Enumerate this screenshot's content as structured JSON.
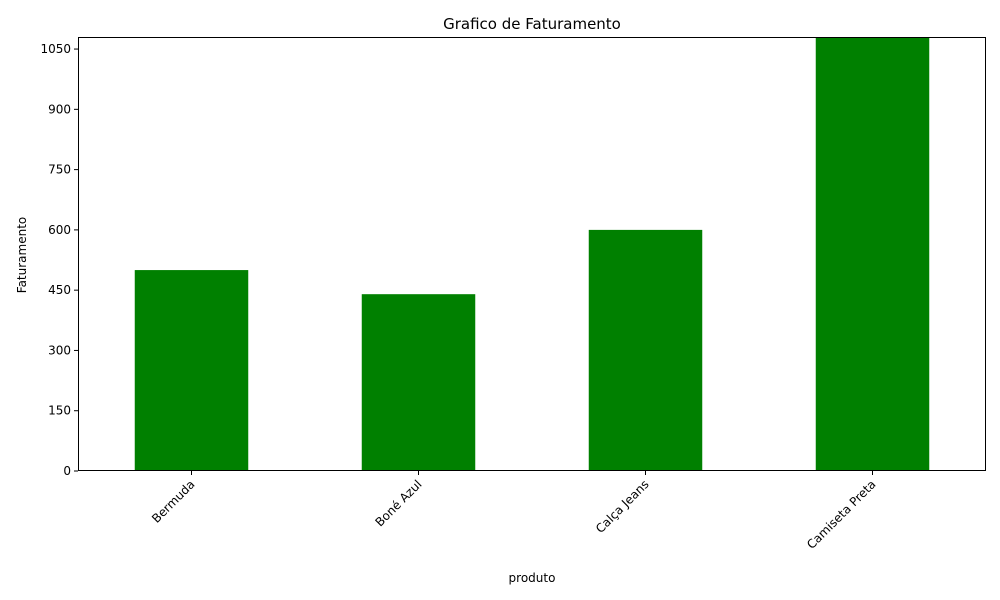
{
  "chart_data": {
    "type": "bar",
    "title": "Grafico de Faturamento",
    "xlabel": "produto",
    "ylabel": "Faturamento",
    "categories": [
      "Bermuda",
      "Boné Azul",
      "Calça Jeans",
      "Camiseta Preta"
    ],
    "values": [
      500,
      440,
      600,
      1080
    ],
    "ylim": [
      0,
      1080
    ],
    "yticks": [
      0,
      150,
      300,
      450,
      600,
      750,
      900,
      1050
    ],
    "ytick_labels": [
      "0",
      "150",
      "300",
      "450",
      "600",
      "750",
      "900",
      "1050"
    ],
    "xtick_rotation_deg": 45,
    "bar_color": "#008000",
    "grid": false,
    "legend": "none"
  }
}
